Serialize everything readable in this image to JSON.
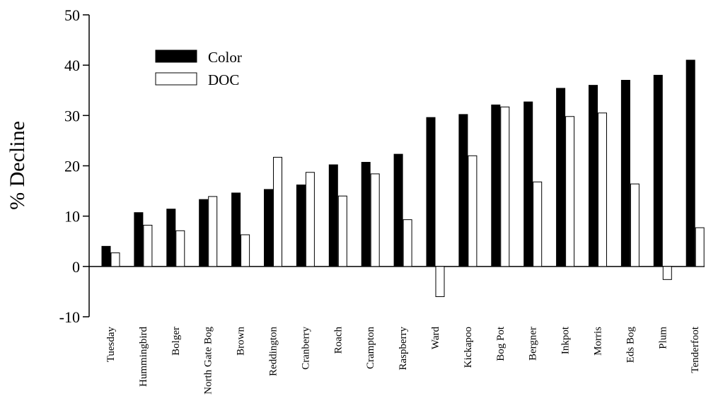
{
  "chart_data": {
    "type": "bar",
    "title": "",
    "xlabel": "",
    "ylabel": "% Decline",
    "ylim": [
      -10,
      50
    ],
    "yticks": [
      -10,
      0,
      10,
      20,
      30,
      40,
      50
    ],
    "grid": false,
    "legend_position": "top-left",
    "categories": [
      "Tuesday",
      "Hummingbird",
      "Bolger",
      "North Gate Bog",
      "Brown",
      "Reddington",
      "Cranberry",
      "Roach",
      "Crampton",
      "Raspberry",
      "Ward",
      "Kickapoo",
      "Bog Pot",
      "Bergner",
      "Inkpot",
      "Morris",
      "Eds Bog",
      "Plum",
      "Tenderfoot"
    ],
    "series": [
      {
        "name": "Color",
        "color": "#000000",
        "values": [
          4.0,
          10.7,
          11.4,
          13.3,
          14.6,
          15.3,
          16.2,
          20.2,
          20.7,
          22.3,
          29.6,
          30.2,
          32.1,
          32.7,
          35.4,
          36.0,
          37.0,
          38.0,
          41.0
        ]
      },
      {
        "name": "DOC",
        "color": "#ffffff",
        "values": [
          2.7,
          8.2,
          7.1,
          13.9,
          6.3,
          21.7,
          18.7,
          14.0,
          18.4,
          9.3,
          -6.0,
          22.0,
          31.7,
          16.8,
          29.8,
          30.5,
          16.4,
          -2.6,
          7.7
        ]
      }
    ]
  }
}
